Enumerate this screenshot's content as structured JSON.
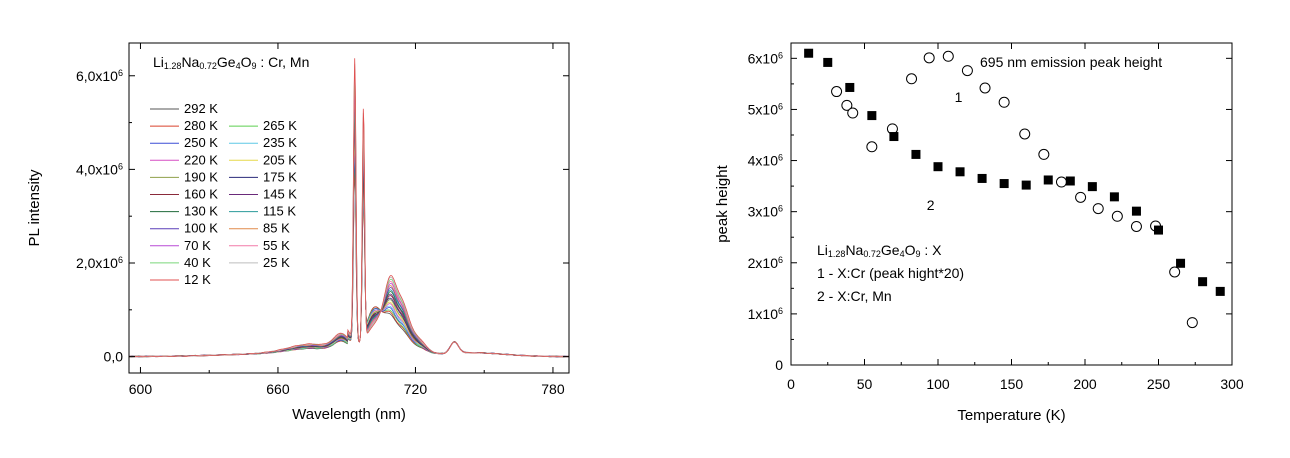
{
  "chart_data": [
    {
      "type": "line",
      "title": "",
      "xlabel": "Wavelength (nm)",
      "ylabel": "PL intensity",
      "xlim": [
        595,
        787
      ],
      "ylim": [
        -350000,
        6700000
      ],
      "x_ticks": [
        600,
        660,
        720,
        780
      ],
      "x_tick_labels": [
        "600",
        "660",
        "720",
        "780"
      ],
      "y_ticks": [
        0,
        2000000,
        4000000,
        6000000
      ],
      "y_tick_labels": [
        {
          "base": "0,0",
          "exp": ""
        },
        {
          "base": "2,0x10",
          "exp": "6"
        },
        {
          "base": "4,0x10",
          "exp": "6"
        },
        {
          "base": "6,0x10",
          "exp": "6"
        }
      ],
      "annotation": {
        "segments": [
          {
            "t": "Li",
            "s": "n"
          },
          {
            "t": "1.28",
            "s": "sub"
          },
          {
            "t": "Na",
            "s": "n"
          },
          {
            "t": "0.72",
            "s": "sub"
          },
          {
            "t": "Ge",
            "s": "n"
          },
          {
            "t": "4",
            "s": "sub"
          },
          {
            "t": "O",
            "s": "n"
          },
          {
            "t": "9",
            "s": "sub"
          },
          {
            "t": " : Cr, Mn",
            "s": "n"
          }
        ]
      },
      "legend_placement": "upper-left",
      "series": [
        {
          "name": "292 K",
          "T": 292,
          "color": "#555555"
        },
        {
          "name": "280 K",
          "T": 280,
          "color": "#d9412b"
        },
        {
          "name": "265 K",
          "T": 265,
          "color": "#5ccf4f"
        },
        {
          "name": "250 K",
          "T": 250,
          "color": "#3b4fd6"
        },
        {
          "name": "235 K",
          "T": 235,
          "color": "#5ec8e6"
        },
        {
          "name": "220 K",
          "T": 220,
          "color": "#d64fc4"
        },
        {
          "name": "205 K",
          "T": 205,
          "color": "#e6d84a"
        },
        {
          "name": "190 K",
          "T": 190,
          "color": "#8fa04a"
        },
        {
          "name": "175 K",
          "T": 175,
          "color": "#2a2a7a"
        },
        {
          "name": "160 K",
          "T": 160,
          "color": "#8a2a3a"
        },
        {
          "name": "145 K",
          "T": 145,
          "color": "#6a2a7a"
        },
        {
          "name": "130 K",
          "T": 130,
          "color": "#1f6a3a"
        },
        {
          "name": "115 K",
          "T": 115,
          "color": "#2a9a9a"
        },
        {
          "name": "100 K",
          "T": 100,
          "color": "#5a3fb8"
        },
        {
          "name": "85 K",
          "T": 85,
          "color": "#e08a4a"
        },
        {
          "name": "70 K",
          "T": 70,
          "color": "#b84ad6"
        },
        {
          "name": "55 K",
          "T": 55,
          "color": "#f27aa8"
        },
        {
          "name": "40 K",
          "T": 40,
          "color": "#7ad67a"
        },
        {
          "name": "25 K",
          "T": 25,
          "color": "#bdbdbd"
        },
        {
          "name": "12 K",
          "T": 12,
          "color": "#e05050"
        }
      ],
      "legend_rows": [
        [
          "292 K",
          null
        ],
        [
          "280 K",
          "265 K"
        ],
        [
          "250 K",
          "235 K"
        ],
        [
          "220 K",
          "205 K"
        ],
        [
          "190 K",
          "175 K"
        ],
        [
          "160 K",
          "145 K"
        ],
        [
          "130 K",
          "115 K"
        ],
        [
          "100 K",
          "85 K"
        ],
        [
          "70 K",
          "55 K"
        ],
        [
          "40 K",
          "25 K"
        ],
        [
          "12 K",
          null
        ]
      ]
    },
    {
      "type": "scatter",
      "title": "",
      "xlabel": "Temperature (K)",
      "ylabel": "peak height",
      "xlim": [
        0,
        300
      ],
      "ylim": [
        0,
        6300000
      ],
      "x_ticks": [
        0,
        50,
        100,
        150,
        200,
        250,
        300
      ],
      "x_tick_labels": [
        "0",
        "50",
        "100",
        "150",
        "200",
        "250",
        "300"
      ],
      "y_ticks": [
        0,
        1000000,
        2000000,
        3000000,
        4000000,
        5000000,
        6000000
      ],
      "y_tick_labels": [
        {
          "base": "0",
          "exp": ""
        },
        {
          "base": "1x10",
          "exp": "6"
        },
        {
          "base": "2x10",
          "exp": "6"
        },
        {
          "base": "3x10",
          "exp": "6"
        },
        {
          "base": "4x10",
          "exp": "6"
        },
        {
          "base": "5x10",
          "exp": "6"
        },
        {
          "base": "6x10",
          "exp": "6"
        }
      ],
      "top_annotation": "695 nm emission peak height",
      "curve_labels": [
        {
          "text": "1",
          "x": 114,
          "y": 5150000
        },
        {
          "text": "2",
          "x": 95,
          "y": 3030000
        }
      ],
      "legend_lines": [
        {
          "segments": [
            {
              "t": "Li",
              "s": "n"
            },
            {
              "t": "1.28",
              "s": "sub"
            },
            {
              "t": "Na",
              "s": "n"
            },
            {
              "t": "0.72",
              "s": "sub"
            },
            {
              "t": "Ge",
              "s": "n"
            },
            {
              "t": "4",
              "s": "sub"
            },
            {
              "t": "O",
              "s": "n"
            },
            {
              "t": "9",
              "s": "sub"
            },
            {
              "t": " : X",
              "s": "n"
            }
          ]
        },
        {
          "segments": [
            {
              "t": "1 - X:Cr (peak hight*20)",
              "s": "n"
            }
          ]
        },
        {
          "segments": [
            {
              "t": "2 - X:Cr, Mn",
              "s": "n"
            }
          ]
        }
      ],
      "series": [
        {
          "name": "1 - X:Cr (peak hight*20)",
          "marker": "open-circle",
          "points": [
            [
              31,
              5350000
            ],
            [
              38,
              5080000
            ],
            [
              42,
              4930000
            ],
            [
              55,
              4270000
            ],
            [
              69,
              4620000
            ],
            [
              82,
              5600000
            ],
            [
              94,
              6010000
            ],
            [
              107,
              6040000
            ],
            [
              120,
              5760000
            ],
            [
              132,
              5420000
            ],
            [
              145,
              5140000
            ],
            [
              159,
              4520000
            ],
            [
              172,
              4120000
            ],
            [
              184,
              3580000
            ],
            [
              197,
              3280000
            ],
            [
              209,
              3060000
            ],
            [
              222,
              2910000
            ],
            [
              235,
              2710000
            ],
            [
              248,
              2720000
            ],
            [
              261,
              1820000
            ],
            [
              273,
              830000
            ]
          ]
        },
        {
          "name": "2 - X:Cr, Mn",
          "marker": "filled-square",
          "points": [
            [
              12,
              6100000
            ],
            [
              25,
              5920000
            ],
            [
              40,
              5430000
            ],
            [
              55,
              4880000
            ],
            [
              70,
              4470000
            ],
            [
              85,
              4120000
            ],
            [
              100,
              3880000
            ],
            [
              115,
              3780000
            ],
            [
              130,
              3650000
            ],
            [
              145,
              3550000
            ],
            [
              160,
              3520000
            ],
            [
              175,
              3620000
            ],
            [
              190,
              3600000
            ],
            [
              205,
              3490000
            ],
            [
              220,
              3290000
            ],
            [
              235,
              3010000
            ],
            [
              250,
              2640000
            ],
            [
              265,
              1990000
            ],
            [
              280,
              1630000
            ],
            [
              292,
              1440000
            ]
          ]
        }
      ]
    }
  ]
}
